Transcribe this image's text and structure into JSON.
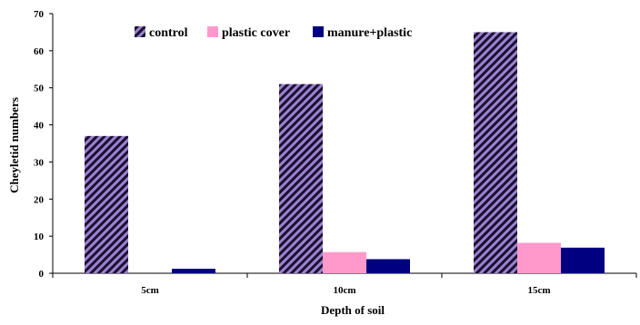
{
  "chart_data": {
    "type": "bar",
    "title": "",
    "xlabel": "Depth of soil",
    "ylabel": "Cheyletid numbers",
    "categories": [
      "5cm",
      "10cm",
      "15cm"
    ],
    "ylim": [
      0,
      70
    ],
    "yticks": [
      0,
      10,
      20,
      30,
      40,
      50,
      60,
      70
    ],
    "grid": false,
    "legend_position": "top",
    "series": [
      {
        "name": "control",
        "values": [
          37,
          51,
          65
        ],
        "color": "#9b82d0",
        "pattern": "diagonal-stripes"
      },
      {
        "name": "plastic cover",
        "values": [
          0,
          5.7,
          8.2
        ],
        "color": "#ff99cc",
        "pattern": "solid"
      },
      {
        "name": "manure+plastic",
        "values": [
          1.2,
          3.8,
          6.9
        ],
        "color": "#000080",
        "pattern": "solid"
      }
    ]
  }
}
